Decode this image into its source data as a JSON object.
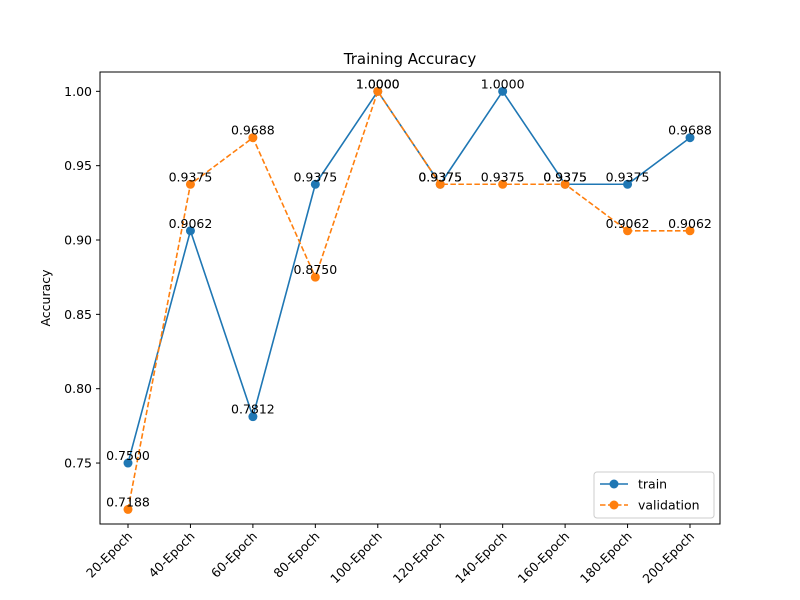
{
  "chart_data": {
    "type": "line",
    "title": "Training Accuracy",
    "xlabel": "",
    "ylabel": "Accuracy",
    "categories": [
      "20-Epoch",
      "40-Epoch",
      "60-Epoch",
      "80-Epoch",
      "100-Epoch",
      "120-Epoch",
      "140-Epoch",
      "160-Epoch",
      "180-Epoch",
      "200-Epoch"
    ],
    "ylim": [
      0.709,
      1.013
    ],
    "yticks": [
      "0.75",
      "0.80",
      "0.85",
      "0.90",
      "0.95",
      "1.00"
    ],
    "grid": false,
    "legend_position": "lower-right",
    "series": [
      {
        "name": "train",
        "color": "#1f77b4",
        "linestyle": "solid",
        "marker": "circle",
        "values": [
          0.75,
          0.9062,
          0.7812,
          0.9375,
          1.0,
          0.9375,
          1.0,
          0.9375,
          0.9375,
          0.9688
        ],
        "labels": [
          "0.7500",
          "0.9062",
          "0.7812",
          "0.9375",
          "1.0000",
          "0.9375",
          "1.0000",
          "0.9375",
          "0.9375",
          "0.9688"
        ]
      },
      {
        "name": "validation",
        "color": "#ff7f0e",
        "linestyle": "dashed",
        "marker": "circle",
        "values": [
          0.7188,
          0.9375,
          0.9688,
          0.875,
          1.0,
          0.9375,
          0.9375,
          0.9375,
          0.9062,
          0.9062
        ],
        "labels": [
          "0.7188",
          "0.9375",
          "0.9688",
          "0.8750",
          "1.0000",
          "0.9375",
          "0.9375",
          "0.9375",
          "0.9062",
          "0.9062"
        ]
      }
    ]
  }
}
